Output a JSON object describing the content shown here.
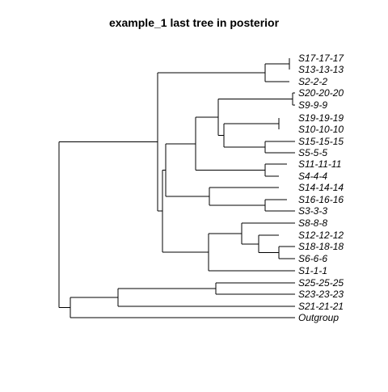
{
  "title": "example_1 last tree in posterior",
  "tree": {
    "layout": "rectangular phylogram",
    "tips": [
      "S17-17-17",
      "S13-13-13",
      "S2-2-2",
      "S20-20-20",
      "S9-9-9",
      "S19-19-19",
      "S10-10-10",
      "S15-15-15",
      "S5-5-5",
      "S11-11-11",
      "S4-4-4",
      "S14-14-14",
      "S16-16-16",
      "S3-3-3",
      "S8-8-8",
      "S12-12-12",
      "S18-18-18",
      "S6-6-6",
      "S1-1-1",
      "S25-25-25",
      "S23-23-23",
      "S21-21-21",
      "Outgroup"
    ]
  }
}
